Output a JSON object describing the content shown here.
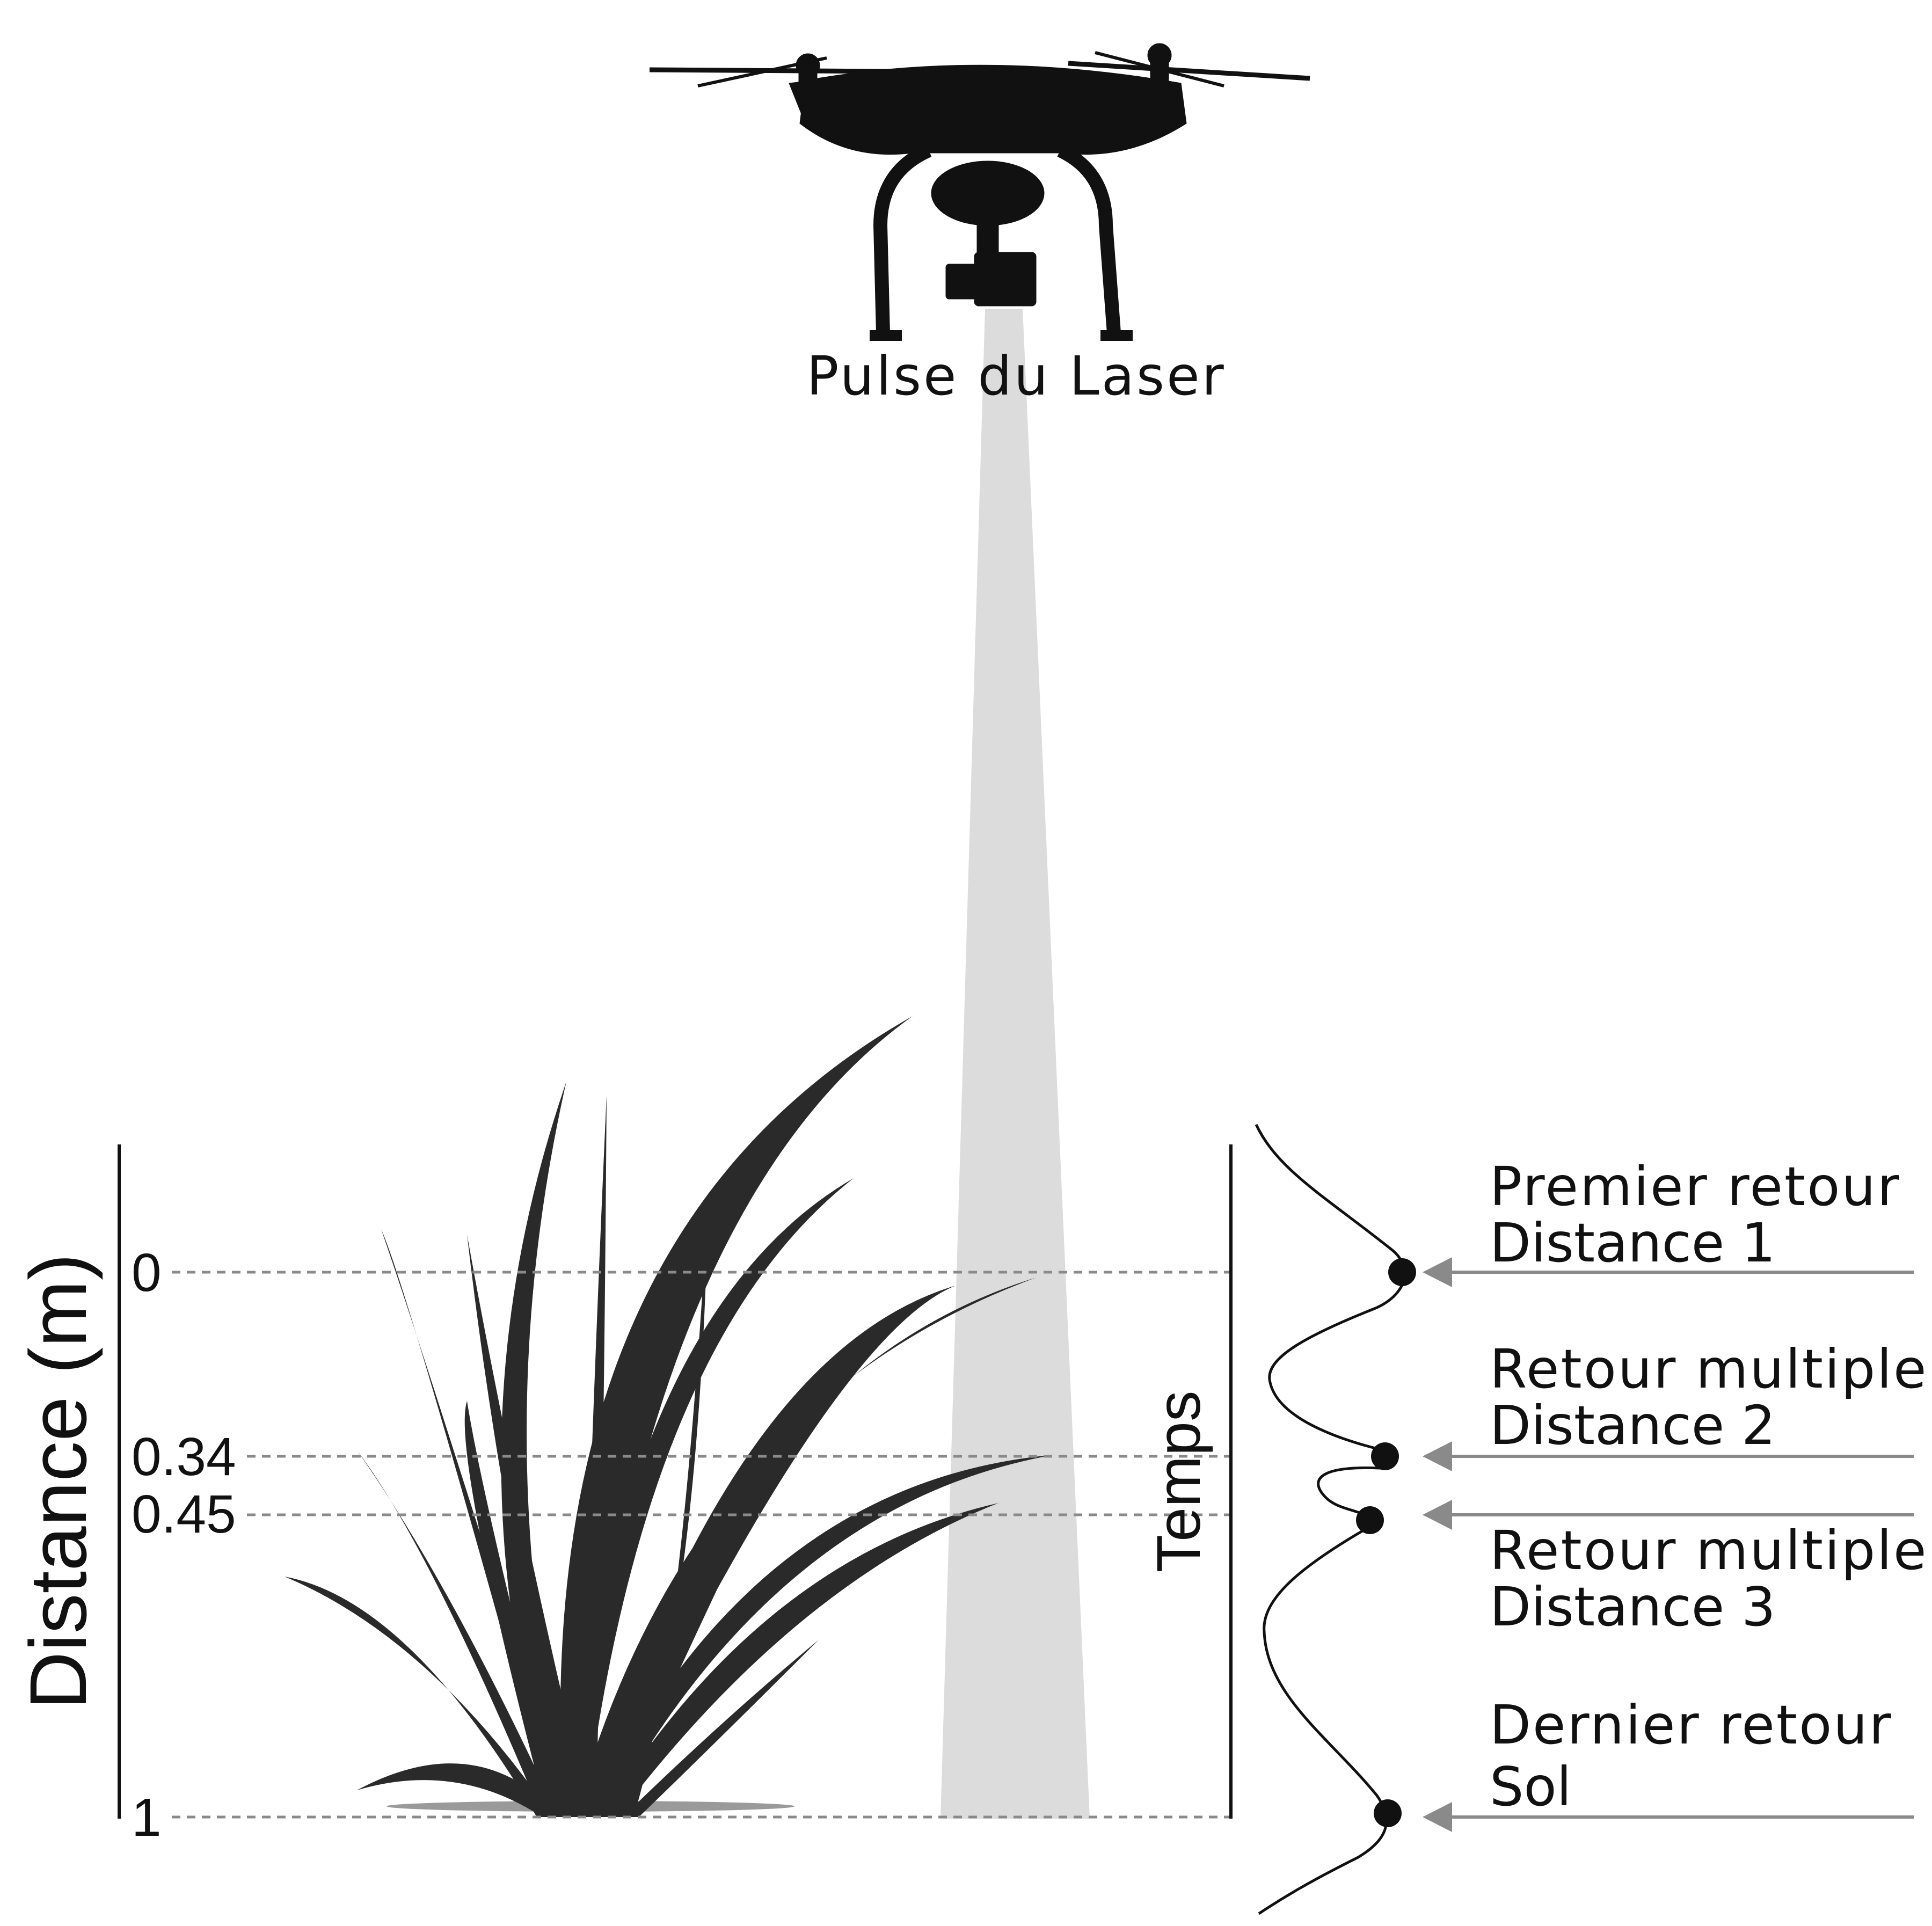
{
  "drone": {
    "pulse_label": "Pulse du Laser"
  },
  "axes": {
    "distance_label": "Distance (m)",
    "time_label": "Temps",
    "ticks": [
      "0",
      "0.34",
      "0.45",
      "1"
    ]
  },
  "returns": [
    {
      "line1": "Premier retour",
      "line2": "Distance 1"
    },
    {
      "line1": "Retour multiple",
      "line2": "Distance 2"
    },
    {
      "line1": "Retour multiple",
      "line2": "Distance 3"
    },
    {
      "line1": "Dernier retour",
      "line2": "Sol"
    }
  ],
  "colors": {
    "beam": "#dcdcdc",
    "dashed": "#8a8a8a",
    "arrow": "#8a8a8a",
    "ink": "#111111"
  }
}
